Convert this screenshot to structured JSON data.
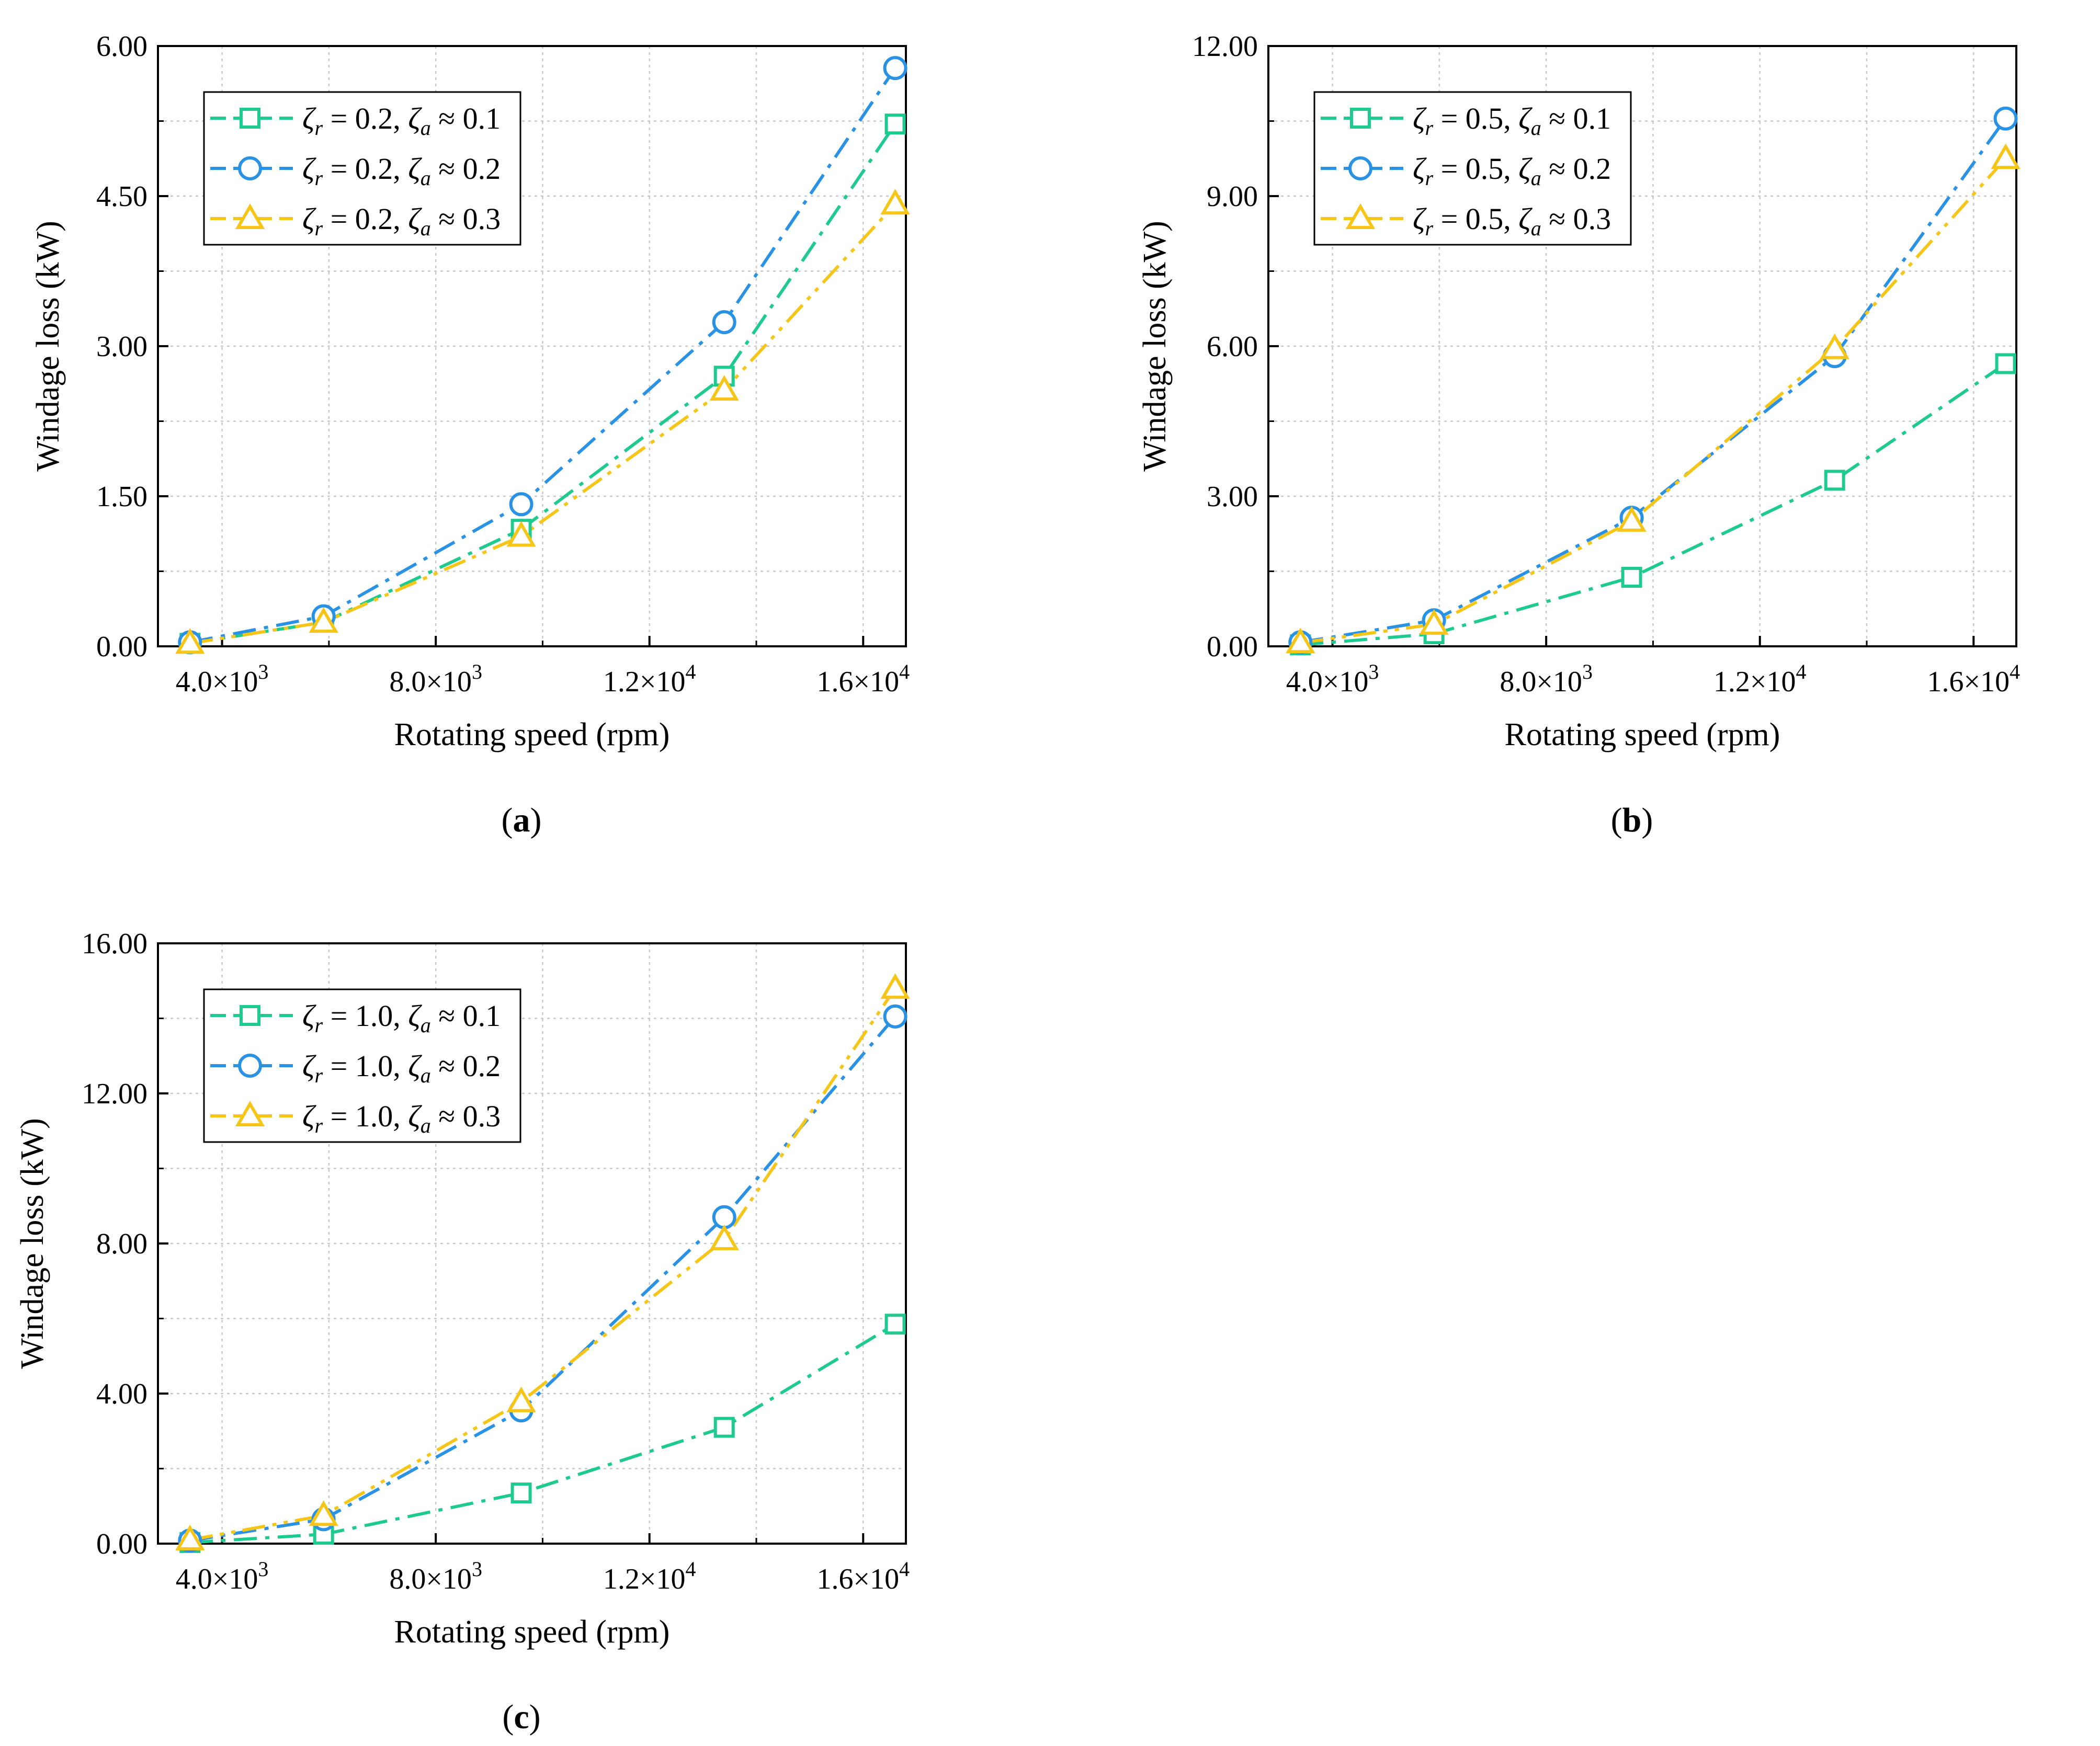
{
  "chart_data": [
    {
      "type": "line",
      "panel": "a",
      "panel_label": "a",
      "xlabel": "Rotating speed (rpm)",
      "ylabel": "Windage loss (kW)",
      "xlim": [
        2800,
        16800
      ],
      "ylim": [
        0,
        6
      ],
      "x_ticks": [
        4000,
        8000,
        12000,
        16000
      ],
      "x_tick_labels": [
        [
          "4.0",
          "3"
        ],
        [
          "8.0",
          "3"
        ],
        [
          "1.2",
          "4"
        ],
        [
          "1.6",
          "4"
        ]
      ],
      "y_ticks": [
        0,
        1.5,
        3,
        4.5,
        6
      ],
      "y_tick_labels": [
        "0.00",
        "1.50",
        "3.00",
        "4.50",
        "6.00"
      ],
      "grid": true,
      "legend_position": "top-left",
      "x": [
        3400,
        5900,
        9600,
        13400,
        16600
      ],
      "series": [
        {
          "legend": {
            "zr": "0.2",
            "za": "0.1"
          },
          "marker": "square",
          "color": "#1fca8e",
          "dash": "dashdot",
          "values": [
            0.03,
            0.24,
            1.17,
            2.7,
            5.22
          ]
        },
        {
          "legend": {
            "zr": "0.2",
            "za": "0.2"
          },
          "marker": "circle",
          "color": "#2a92e4",
          "dash": "dashdot",
          "values": [
            0.04,
            0.3,
            1.42,
            3.24,
            5.78
          ]
        },
        {
          "legend": {
            "zr": "0.2",
            "za": "0.3"
          },
          "marker": "triangle",
          "color": "#f5c518",
          "dash": "dashdotdot",
          "values": [
            0.03,
            0.24,
            1.1,
            2.56,
            4.42
          ]
        }
      ]
    },
    {
      "type": "line",
      "panel": "b",
      "panel_label": "b",
      "xlabel": "Rotating speed (rpm)",
      "ylabel": "Windage loss (kW)",
      "xlim": [
        2800,
        16800
      ],
      "ylim": [
        0,
        12
      ],
      "x_ticks": [
        4000,
        8000,
        12000,
        16000
      ],
      "x_tick_labels": [
        [
          "4.0",
          "3"
        ],
        [
          "8.0",
          "3"
        ],
        [
          "1.2",
          "4"
        ],
        [
          "1.6",
          "4"
        ]
      ],
      "y_ticks": [
        0,
        3,
        6,
        9,
        12
      ],
      "y_tick_labels": [
        "0.00",
        "3.00",
        "6.00",
        "9.00",
        "12.00"
      ],
      "grid": true,
      "legend_position": "top-left",
      "x": [
        3400,
        5900,
        9600,
        13400,
        16600
      ],
      "series": [
        {
          "legend": {
            "zr": "0.5",
            "za": "0.1"
          },
          "marker": "square",
          "color": "#1fca8e",
          "dash": "dashdot",
          "values": [
            0.03,
            0.25,
            1.38,
            3.32,
            5.65
          ]
        },
        {
          "legend": {
            "zr": "0.5",
            "za": "0.2"
          },
          "marker": "circle",
          "color": "#2a92e4",
          "dash": "dashdot",
          "values": [
            0.08,
            0.52,
            2.57,
            5.8,
            10.55
          ]
        },
        {
          "legend": {
            "zr": "0.5",
            "za": "0.3"
          },
          "marker": "triangle",
          "color": "#f5c518",
          "dash": "dashdotdot",
          "values": [
            0.07,
            0.44,
            2.5,
            5.95,
            9.75
          ]
        }
      ]
    },
    {
      "type": "line",
      "panel": "c",
      "panel_label": "c",
      "xlabel": "Rotating speed (rpm)",
      "ylabel": "Windage loss (kW)",
      "xlim": [
        2800,
        16800
      ],
      "ylim": [
        0,
        16
      ],
      "x_ticks": [
        4000,
        8000,
        12000,
        16000
      ],
      "x_tick_labels": [
        [
          "4.0",
          "3"
        ],
        [
          "8.0",
          "3"
        ],
        [
          "1.2",
          "4"
        ],
        [
          "1.6",
          "4"
        ]
      ],
      "y_ticks": [
        0,
        4,
        8,
        12,
        16
      ],
      "y_tick_labels": [
        "0.00",
        "4.00",
        "8.00",
        "12.00",
        "16.00"
      ],
      "grid": true,
      "legend_position": "top-left",
      "x": [
        3400,
        5900,
        9600,
        13400,
        16600
      ],
      "series": [
        {
          "legend": {
            "zr": "1.0",
            "za": "0.1"
          },
          "marker": "square",
          "color": "#1fca8e",
          "dash": "dashdot",
          "values": [
            0.03,
            0.25,
            1.35,
            3.1,
            5.85
          ]
        },
        {
          "legend": {
            "zr": "1.0",
            "za": "0.2"
          },
          "marker": "circle",
          "color": "#2a92e4",
          "dash": "dashdot",
          "values": [
            0.08,
            0.65,
            3.55,
            8.7,
            14.05
          ]
        },
        {
          "legend": {
            "zr": "1.0",
            "za": "0.3"
          },
          "marker": "triangle",
          "color": "#f5c518",
          "dash": "dashdotdot",
          "values": [
            0.1,
            0.75,
            3.78,
            8.1,
            14.8
          ]
        }
      ]
    }
  ]
}
